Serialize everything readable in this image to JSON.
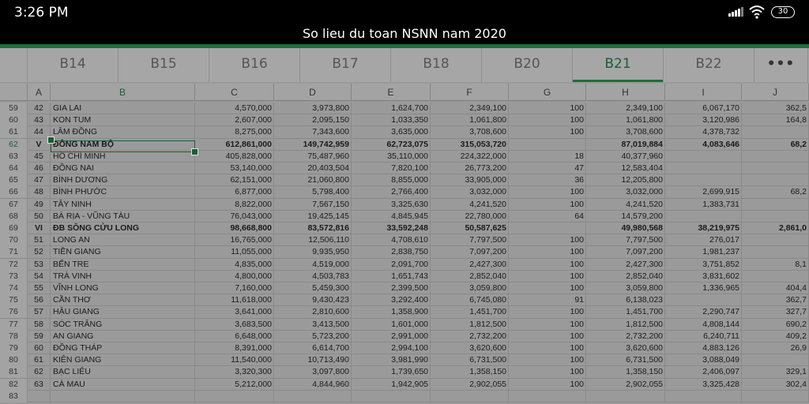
{
  "status": {
    "time": "3:26 PM",
    "battery": "30"
  },
  "title": "So lieu du toan NSNN nam 2020",
  "tabs": [
    {
      "label": "B14"
    },
    {
      "label": "B15"
    },
    {
      "label": "B16"
    },
    {
      "label": "B17"
    },
    {
      "label": "B18"
    },
    {
      "label": "B20"
    },
    {
      "label": "B21",
      "active": true
    },
    {
      "label": "B22"
    }
  ],
  "more_label": "•••",
  "columns": [
    "A",
    "B",
    "C",
    "D",
    "E",
    "F",
    "G",
    "H",
    "I",
    "J"
  ],
  "selected_column": "B",
  "rows": [
    {
      "n": "59",
      "a": "42",
      "b": "GIA LAI",
      "c": "4,570,000",
      "d": "3,973,800",
      "e": "1,624,700",
      "f": "2,349,100",
      "g": "100",
      "h": "2,349,100",
      "i": "6,067,170",
      "j": "362,5"
    },
    {
      "n": "60",
      "a": "43",
      "b": "KON TUM",
      "c": "2,607,000",
      "d": "2,095,150",
      "e": "1,033,350",
      "f": "1,061,800",
      "g": "100",
      "h": "1,061,800",
      "i": "3,120,986",
      "j": "164,8"
    },
    {
      "n": "61",
      "a": "44",
      "b": "LÂM ĐỒNG",
      "c": "8,275,000",
      "d": "7,343,600",
      "e": "3,635,000",
      "f": "3,708,600",
      "g": "100",
      "h": "3,708,600",
      "i": "4,378,732",
      "j": ""
    },
    {
      "n": "62",
      "a": "V",
      "b": "ĐÔNG NAM BỘ",
      "c": "612,861,000",
      "d": "149,742,959",
      "e": "62,723,075",
      "f": "315,053,720",
      "g": "",
      "h": "87,019,884",
      "i": "4,083,646",
      "j": "68,2",
      "bold": true,
      "selected": true
    },
    {
      "n": "63",
      "a": "45",
      "b": "HỒ CHÍ MINH",
      "c": "405,828,000",
      "d": "75,487,960",
      "e": "35,110,000",
      "f": "224,322,000",
      "g": "18",
      "h": "40,377,960",
      "i": "",
      "j": ""
    },
    {
      "n": "64",
      "a": "46",
      "b": "ĐỒNG NAI",
      "c": "53,140,000",
      "d": "20,403,504",
      "e": "7,820,100",
      "f": "26,773,200",
      "g": "47",
      "h": "12,583,404",
      "i": "",
      "j": ""
    },
    {
      "n": "65",
      "a": "47",
      "b": "BÌNH DƯƠNG",
      "c": "62,151,000",
      "d": "21,060,800",
      "e": "8,855,000",
      "f": "33,905,000",
      "g": "36",
      "h": "12,205,800",
      "i": "",
      "j": ""
    },
    {
      "n": "66",
      "a": "48",
      "b": "BÌNH PHƯỚC",
      "c": "6,877,000",
      "d": "5,798,400",
      "e": "2,766,400",
      "f": "3,032,000",
      "g": "100",
      "h": "3,032,000",
      "i": "2,699,915",
      "j": "68,2"
    },
    {
      "n": "67",
      "a": "49",
      "b": "TÂY NINH",
      "c": "8,822,000",
      "d": "7,567,150",
      "e": "3,325,630",
      "f": "4,241,520",
      "g": "100",
      "h": "4,241,520",
      "i": "1,383,731",
      "j": ""
    },
    {
      "n": "68",
      "a": "50",
      "b": "BÀ RỊA - VŨNG TÀU",
      "c": "76,043,000",
      "d": "19,425,145",
      "e": "4,845,945",
      "f": "22,780,000",
      "g": "64",
      "h": "14,579,200",
      "i": "",
      "j": ""
    },
    {
      "n": "69",
      "a": "VI",
      "b": "ĐB SÔNG CỬU LONG",
      "c": "98,668,800",
      "d": "83,572,816",
      "e": "33,592,248",
      "f": "50,587,625",
      "g": "",
      "h": "49,980,568",
      "i": "38,219,975",
      "j": "2,861,0",
      "bold": true
    },
    {
      "n": "70",
      "a": "51",
      "b": "LONG AN",
      "c": "16,765,000",
      "d": "12,506,110",
      "e": "4,708,610",
      "f": "7,797,500",
      "g": "100",
      "h": "7,797,500",
      "i": "276,017",
      "j": ""
    },
    {
      "n": "71",
      "a": "52",
      "b": "TIỀN GIANG",
      "c": "11,055,000",
      "d": "9,935,950",
      "e": "2,838,750",
      "f": "7,097,200",
      "g": "100",
      "h": "7,097,200",
      "i": "1,981,237",
      "j": ""
    },
    {
      "n": "72",
      "a": "53",
      "b": "BẾN TRE",
      "c": "4,835,000",
      "d": "4,519,000",
      "e": "2,091,700",
      "f": "2,427,300",
      "g": "100",
      "h": "2,427,300",
      "i": "3,751,852",
      "j": "8,1"
    },
    {
      "n": "73",
      "a": "54",
      "b": "TRÀ VINH",
      "c": "4,800,000",
      "d": "4,503,783",
      "e": "1,651,743",
      "f": "2,852,040",
      "g": "100",
      "h": "2,852,040",
      "i": "3,831,602",
      "j": ""
    },
    {
      "n": "74",
      "a": "55",
      "b": "VĨNH LONG",
      "c": "7,160,000",
      "d": "5,459,300",
      "e": "2,399,500",
      "f": "3,059,800",
      "g": "100",
      "h": "3,059,800",
      "i": "1,336,965",
      "j": "404,4"
    },
    {
      "n": "75",
      "a": "56",
      "b": "CẦN THƠ",
      "c": "11,618,000",
      "d": "9,430,423",
      "e": "3,292,400",
      "f": "6,745,080",
      "g": "91",
      "h": "6,138,023",
      "i": "",
      "j": "362,7"
    },
    {
      "n": "76",
      "a": "57",
      "b": "HẬU GIANG",
      "c": "3,641,000",
      "d": "2,810,600",
      "e": "1,358,900",
      "f": "1,451,700",
      "g": "100",
      "h": "1,451,700",
      "i": "2,290,747",
      "j": "327,7"
    },
    {
      "n": "77",
      "a": "58",
      "b": "SÓC TRĂNG",
      "c": "3,683,500",
      "d": "3,413,500",
      "e": "1,601,000",
      "f": "1,812,500",
      "g": "100",
      "h": "1,812,500",
      "i": "4,808,144",
      "j": "690,2"
    },
    {
      "n": "78",
      "a": "59",
      "b": "AN GIANG",
      "c": "6,648,000",
      "d": "5,723,200",
      "e": "2,991,000",
      "f": "2,732,200",
      "g": "100",
      "h": "2,732,200",
      "i": "6,240,711",
      "j": "409,2"
    },
    {
      "n": "79",
      "a": "60",
      "b": "ĐỒNG THÁP",
      "c": "8,391,000",
      "d": "6,614,700",
      "e": "2,994,100",
      "f": "3,620,600",
      "g": "100",
      "h": "3,620,600",
      "i": "4,883,126",
      "j": "26,9"
    },
    {
      "n": "80",
      "a": "61",
      "b": "KIÊN GIANG",
      "c": "11,540,000",
      "d": "10,713,490",
      "e": "3,981,990",
      "f": "6,731,500",
      "g": "100",
      "h": "6,731,500",
      "i": "3,088,049",
      "j": ""
    },
    {
      "n": "81",
      "a": "62",
      "b": "BẠC LIÊU",
      "c": "3,320,300",
      "d": "3,097,800",
      "e": "1,739,650",
      "f": "1,358,150",
      "g": "100",
      "h": "1,358,150",
      "i": "2,406,097",
      "j": "329,1"
    },
    {
      "n": "82",
      "a": "63",
      "b": "CÀ MAU",
      "c": "5,212,000",
      "d": "4,844,960",
      "e": "1,942,905",
      "f": "2,902,055",
      "g": "100",
      "h": "2,902,055",
      "i": "3,325,428",
      "j": "302,4"
    },
    {
      "n": "83",
      "a": "",
      "b": "",
      "c": "",
      "d": "",
      "e": "",
      "f": "",
      "g": "",
      "h": "",
      "i": "",
      "j": ""
    }
  ]
}
